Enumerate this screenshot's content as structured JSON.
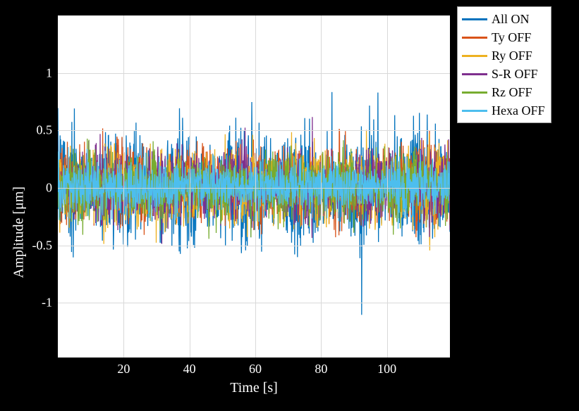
{
  "chart": {
    "type": "line",
    "background_color": "#ffffff",
    "page_background_color": "#000000",
    "grid_color": "#d9d9d9",
    "border_color": "#000000",
    "xlim": [
      0,
      120
    ],
    "ylim": [
      -1.5,
      1.5
    ],
    "x_ticks": [
      20,
      40,
      60,
      80,
      100
    ],
    "x_tick_labels": [
      "20",
      "40",
      "60",
      "80",
      "100"
    ],
    "y_ticks": [
      -1,
      -0.5,
      0,
      0.5,
      1
    ],
    "y_tick_labels": [
      "-1",
      "-0.5",
      "0",
      "0.5",
      "1"
    ],
    "x_label": "Time [s]",
    "y_label": "Amplitude [μm]",
    "label_fontsize": 20,
    "tick_fontsize": 18,
    "line_width": 1.3,
    "series": [
      {
        "label": "All ON",
        "color": "#0072bd",
        "envelope_base": 0.75,
        "envelope_var": 0.55,
        "undulation_freq": 0.055,
        "undulation_amp": 0.22,
        "seed": 1
      },
      {
        "label": "Ty OFF",
        "color": "#d95319",
        "envelope_base": 0.55,
        "envelope_var": 0.3,
        "undulation_freq": 0.045,
        "undulation_amp": 0.12,
        "seed": 2
      },
      {
        "label": "Ry OFF",
        "color": "#edb120",
        "envelope_base": 0.55,
        "envelope_var": 0.3,
        "undulation_freq": 0.05,
        "undulation_amp": 0.12,
        "seed": 3
      },
      {
        "label": "S-R OFF",
        "color": "#7e2f8e",
        "envelope_base": 0.5,
        "envelope_var": 0.28,
        "undulation_freq": 0.048,
        "undulation_amp": 0.1,
        "seed": 4
      },
      {
        "label": "Rz OFF",
        "color": "#77ac30",
        "envelope_base": 0.48,
        "envelope_var": 0.28,
        "undulation_freq": 0.052,
        "undulation_amp": 0.1,
        "seed": 5
      },
      {
        "label": "Hexa OFF",
        "color": "#4dbeee",
        "envelope_base": 0.4,
        "envelope_var": 0.1,
        "undulation_freq": 0.04,
        "undulation_amp": 0.04,
        "seed": 6
      }
    ],
    "n_points": 1400
  },
  "legend": {
    "position": "outside-top-right",
    "fontsize": 18,
    "swatch_width": 36,
    "swatch_height": 3,
    "background": "#ffffff",
    "border_color": "#999999"
  }
}
